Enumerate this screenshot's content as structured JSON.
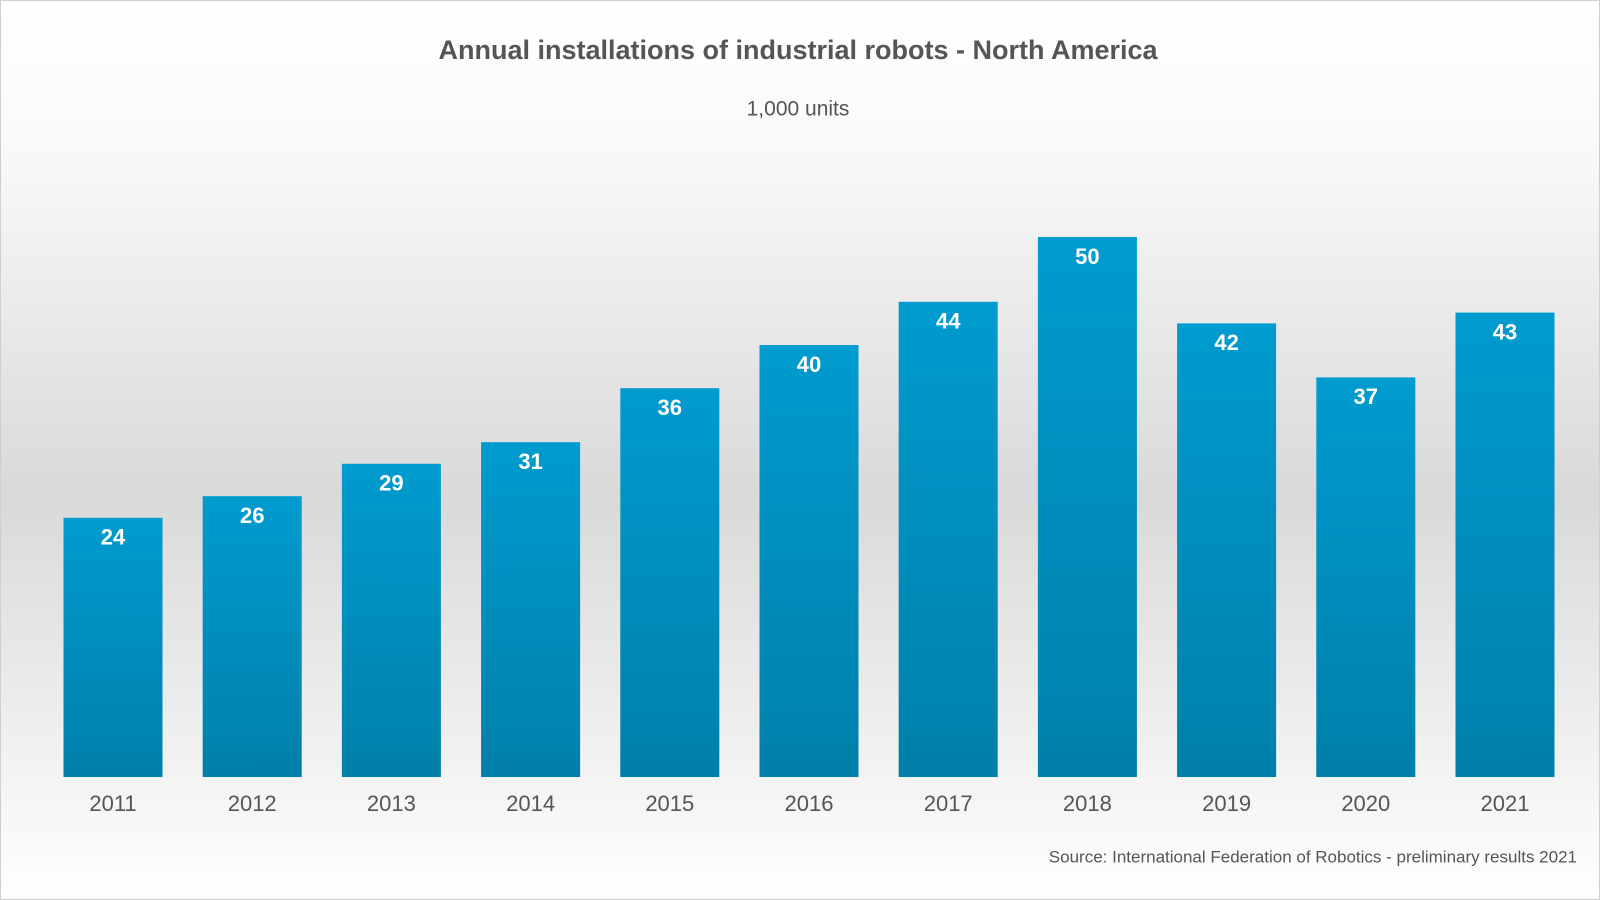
{
  "chart_data": {
    "type": "bar",
    "title": "Annual installations of industrial robots - North America",
    "subtitle": "1,000 units",
    "source": "Source: International Federation of Robotics - preliminary results 2021",
    "categories": [
      "2011",
      "2012",
      "2013",
      "2014",
      "2015",
      "2016",
      "2017",
      "2018",
      "2019",
      "2020",
      "2021"
    ],
    "values": [
      24,
      26,
      29,
      31,
      36,
      40,
      44,
      50,
      42,
      37,
      43
    ],
    "color": "#009bcf"
  }
}
